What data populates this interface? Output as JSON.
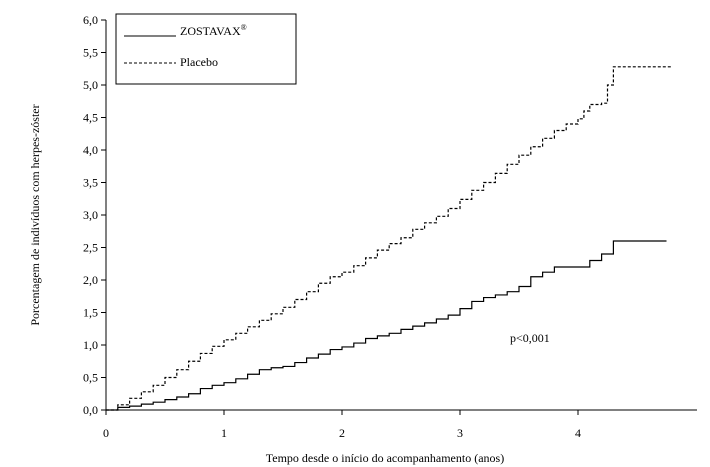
{
  "chart_data": {
    "type": "line",
    "xlabel": "Tempo desde o início do acompanhamento (anos)",
    "ylabel": "Porcentagem de indivíduos com herpes-zóster",
    "xlim": [
      0,
      5
    ],
    "ylim": [
      0,
      6
    ],
    "x_ticks": [
      0,
      1,
      2,
      3,
      4
    ],
    "x_tick_labels": [
      "0",
      "1",
      "2",
      "3",
      "4"
    ],
    "y_ticks": [
      0,
      0.5,
      1,
      1.5,
      2,
      2.5,
      3,
      3.5,
      4,
      4.5,
      5,
      5.5,
      6
    ],
    "y_tick_labels": [
      "0,0",
      "0,5",
      "1,0",
      "1,5",
      "2,0",
      "2,5",
      "3,0",
      "3,5",
      "4,0",
      "4,5",
      "5,0",
      "5,5",
      "6,0"
    ],
    "grid": false,
    "legend_position": "top-left",
    "annotation": "p<0,001",
    "series": [
      {
        "name": "ZOSTAVAX",
        "name_superscript": "®",
        "line_style": "solid",
        "color": "#000000",
        "x": [
          0,
          0.1,
          0.2,
          0.3,
          0.4,
          0.5,
          0.6,
          0.7,
          0.8,
          0.9,
          1.0,
          1.1,
          1.2,
          1.3,
          1.4,
          1.5,
          1.6,
          1.7,
          1.8,
          1.9,
          2.0,
          2.1,
          2.2,
          2.3,
          2.4,
          2.5,
          2.6,
          2.7,
          2.8,
          2.9,
          3.0,
          3.1,
          3.2,
          3.3,
          3.4,
          3.5,
          3.6,
          3.7,
          3.8,
          3.9,
          4.0,
          4.1,
          4.2,
          4.3,
          4.4,
          4.5,
          4.6,
          4.75
        ],
        "y": [
          0,
          0.04,
          0.06,
          0.09,
          0.12,
          0.16,
          0.2,
          0.25,
          0.33,
          0.38,
          0.42,
          0.48,
          0.55,
          0.62,
          0.65,
          0.67,
          0.73,
          0.8,
          0.86,
          0.93,
          0.97,
          1.03,
          1.1,
          1.14,
          1.18,
          1.24,
          1.29,
          1.34,
          1.4,
          1.46,
          1.56,
          1.67,
          1.73,
          1.77,
          1.82,
          1.9,
          2.05,
          2.12,
          2.2,
          2.2,
          2.2,
          2.3,
          2.4,
          2.6,
          2.6,
          2.6,
          2.6,
          2.6
        ]
      },
      {
        "name": "Placebo",
        "line_style": "dashed",
        "color": "#000000",
        "x": [
          0,
          0.1,
          0.2,
          0.3,
          0.4,
          0.5,
          0.6,
          0.7,
          0.8,
          0.9,
          1.0,
          1.1,
          1.2,
          1.3,
          1.4,
          1.5,
          1.6,
          1.7,
          1.8,
          1.9,
          2.0,
          2.1,
          2.2,
          2.3,
          2.4,
          2.5,
          2.6,
          2.7,
          2.8,
          2.9,
          3.0,
          3.1,
          3.2,
          3.3,
          3.4,
          3.5,
          3.6,
          3.7,
          3.8,
          3.9,
          4.0,
          4.05,
          4.1,
          4.2,
          4.25,
          4.3,
          4.4,
          4.6,
          4.8
        ],
        "y": [
          0,
          0.08,
          0.18,
          0.28,
          0.38,
          0.5,
          0.62,
          0.75,
          0.87,
          0.98,
          1.08,
          1.18,
          1.28,
          1.38,
          1.48,
          1.58,
          1.7,
          1.82,
          1.95,
          2.05,
          2.12,
          2.22,
          2.34,
          2.46,
          2.56,
          2.65,
          2.78,
          2.88,
          2.98,
          3.1,
          3.24,
          3.38,
          3.5,
          3.64,
          3.78,
          3.92,
          4.05,
          4.18,
          4.3,
          4.4,
          4.48,
          4.6,
          4.7,
          4.72,
          5.0,
          5.28,
          5.28,
          5.28,
          5.28
        ]
      }
    ]
  }
}
